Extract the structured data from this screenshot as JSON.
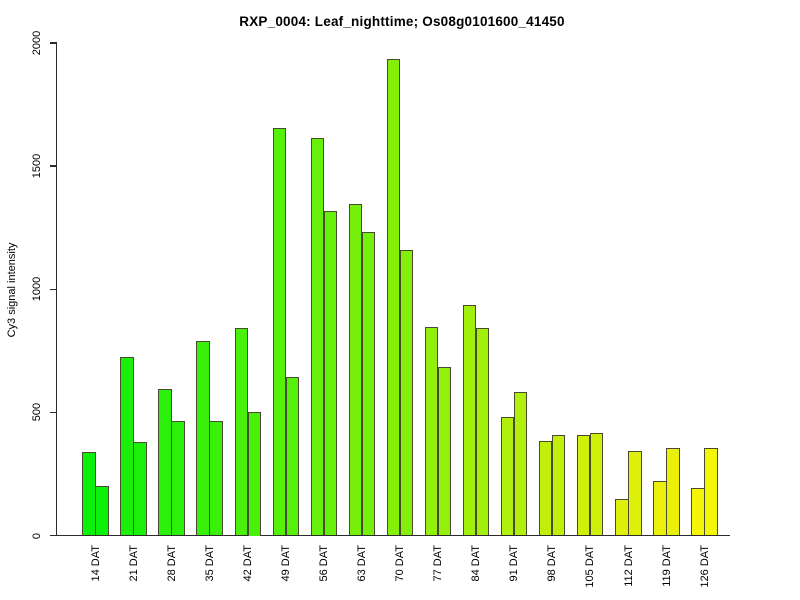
{
  "chart_data": {
    "type": "bar",
    "title": "RXP_0004: Leaf_nighttime; Os08g0101600_41450",
    "xlabel": "",
    "ylabel": "Cy3 signal intensity",
    "ylim": [
      0,
      2000
    ],
    "yticks": [
      0,
      500,
      1000,
      1500,
      2000
    ],
    "grid": false,
    "legend": "none",
    "bars_per_group": 2,
    "categories": [
      "14 DAT",
      "21 DAT",
      "28 DAT",
      "35 DAT",
      "42 DAT",
      "49 DAT",
      "56 DAT",
      "63 DAT",
      "70 DAT",
      "77 DAT",
      "84 DAT",
      "91 DAT",
      "98 DAT",
      "105 DAT",
      "112 DAT",
      "119 DAT",
      "126 DAT"
    ],
    "series": [
      {
        "values": [
          340,
          724,
          595,
          791,
          843,
          1656,
          1613,
          1345,
          1935,
          848,
          937,
          480,
          384,
          410,
          147,
          222,
          192
        ]
      },
      {
        "values": [
          202,
          381,
          466,
          465,
          500,
          644,
          1319,
          1234,
          1159,
          686,
          841,
          584,
          408,
          418,
          343,
          354,
          356
        ]
      }
    ],
    "group_colors": [
      "#0CF00A",
      "#1BF00A",
      "#2AF00A",
      "#39F00A",
      "#48F00A",
      "#57F00A",
      "#66F00A",
      "#75F00A",
      "#84F00A",
      "#93F00A",
      "#A2F00A",
      "#B1F00A",
      "#C0F00A",
      "#CFF00A",
      "#DEF00A",
      "#EAF00A",
      "#F5F50A"
    ],
    "bar_border_color": "#4a4a33",
    "axis_color": "#2b2b2b",
    "text_color": "#000000",
    "background_color": "#ffffff"
  }
}
